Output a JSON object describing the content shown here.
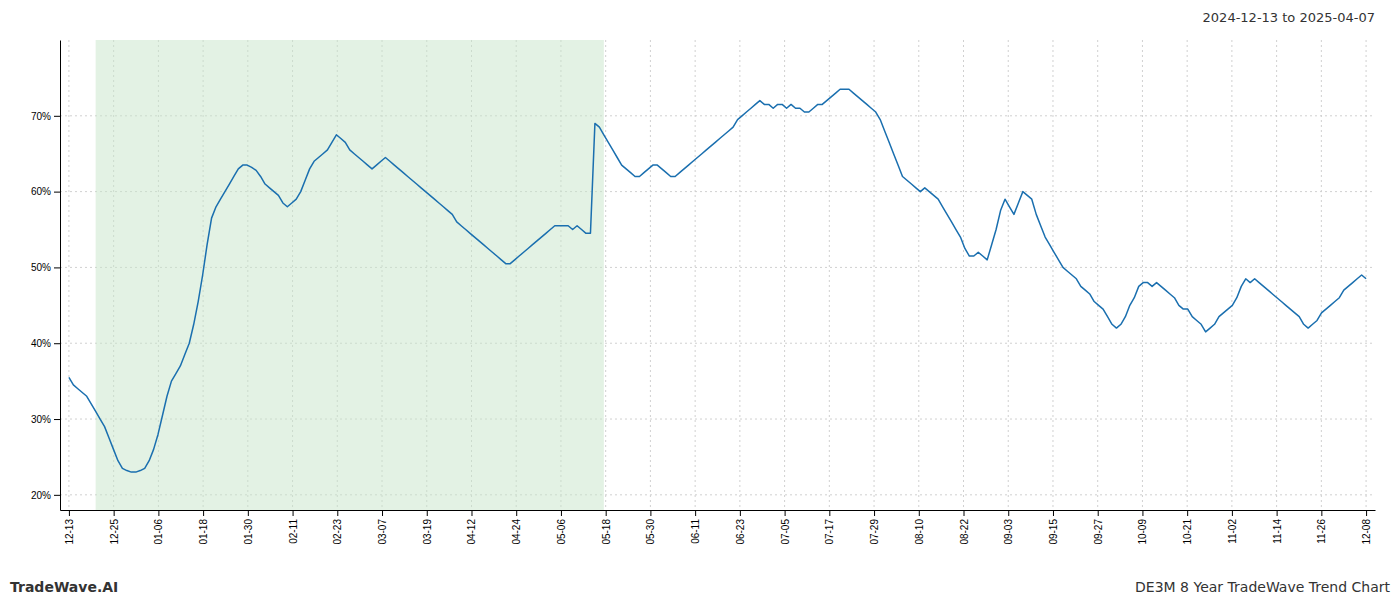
{
  "chart_data": {
    "type": "line",
    "title": "2024-12-13 to 2025-04-07",
    "annotations": [
      "TradeWave.AI",
      "DE3M 8 Year TradeWave Trend Chart"
    ],
    "color": "#1a6faf",
    "grid": true,
    "shaded_region": {
      "x": [
        6,
        120
      ],
      "color": "#c8e6c9"
    },
    "xlim": [
      -2,
      293
    ],
    "xticks": [
      {
        "value": 0,
        "label": "12-13"
      },
      {
        "value": 10.0345,
        "label": "12-25"
      },
      {
        "value": 20.069,
        "label": "01-06"
      },
      {
        "value": 30.1034,
        "label": "01-18"
      },
      {
        "value": 40.1379,
        "label": "01-30"
      },
      {
        "value": 50.1724,
        "label": "02-11"
      },
      {
        "value": 60.2069,
        "label": "02-23"
      },
      {
        "value": 70.2414,
        "label": "03-07"
      },
      {
        "value": 80.2759,
        "label": "03-19"
      },
      {
        "value": 90.3103,
        "label": "04-12"
      },
      {
        "value": 100.3448,
        "label": "04-24"
      },
      {
        "value": 110.3793,
        "label": "05-06"
      },
      {
        "value": 120.4138,
        "label": "05-18"
      },
      {
        "value": 130.4483,
        "label": "05-30"
      },
      {
        "value": 140.4828,
        "label": "06-11"
      },
      {
        "value": 150.5172,
        "label": "06-23"
      },
      {
        "value": 160.5517,
        "label": "07-05"
      },
      {
        "value": 170.5862,
        "label": "07-17"
      },
      {
        "value": 180.6207,
        "label": "07-29"
      },
      {
        "value": 190.6552,
        "label": "08-10"
      },
      {
        "value": 200.6897,
        "label": "08-22"
      },
      {
        "value": 210.7241,
        "label": "09-03"
      },
      {
        "value": 220.7586,
        "label": "09-15"
      },
      {
        "value": 230.7931,
        "label": "09-27"
      },
      {
        "value": 240.8276,
        "label": "10-09"
      },
      {
        "value": 250.8621,
        "label": "10-21"
      },
      {
        "value": 260.8966,
        "label": "11-02"
      },
      {
        "value": 270.931,
        "label": "11-14"
      },
      {
        "value": 280.9655,
        "label": "11-26"
      },
      {
        "value": 291,
        "label": "12-08"
      }
    ],
    "ylim": [
      18,
      80
    ],
    "yticks": [
      {
        "value": 20,
        "label": "20%"
      },
      {
        "value": 30,
        "label": "30%"
      },
      {
        "value": 40,
        "label": "40%"
      },
      {
        "value": 50,
        "label": "50%"
      },
      {
        "value": 60,
        "label": "60%"
      },
      {
        "value": 70,
        "label": "70%"
      }
    ],
    "x": [
      0,
      1,
      2,
      3,
      4,
      5,
      6,
      7,
      8,
      9,
      10,
      11,
      12,
      13,
      14,
      15,
      16,
      17,
      18,
      19,
      20,
      21,
      22,
      23,
      24,
      25,
      26,
      27,
      28,
      29,
      30,
      31,
      32,
      33,
      34,
      35,
      36,
      37,
      38,
      39,
      40,
      41,
      42,
      43,
      44,
      45,
      46,
      47,
      48,
      49,
      50,
      51,
      52,
      53,
      54,
      55,
      56,
      57,
      58,
      59,
      60,
      61,
      62,
      63,
      64,
      65,
      66,
      67,
      68,
      69,
      70,
      71,
      72,
      73,
      74,
      75,
      76,
      77,
      78,
      79,
      80,
      81,
      82,
      83,
      84,
      85,
      86,
      87,
      88,
      89,
      90,
      91,
      92,
      93,
      94,
      95,
      96,
      97,
      98,
      99,
      100,
      101,
      102,
      103,
      104,
      105,
      106,
      107,
      108,
      109,
      110,
      111,
      112,
      113,
      114,
      115,
      116,
      117,
      118,
      119,
      120,
      121,
      122,
      123,
      124,
      125,
      126,
      127,
      128,
      129,
      130,
      131,
      132,
      133,
      134,
      135,
      136,
      137,
      138,
      139,
      140,
      141,
      142,
      143,
      144,
      145,
      146,
      147,
      148,
      149,
      150,
      151,
      152,
      153,
      154,
      155,
      156,
      157,
      158,
      159,
      160,
      161,
      162,
      163,
      164,
      165,
      166,
      167,
      168,
      169,
      170,
      171,
      172,
      173,
      174,
      175,
      176,
      177,
      178,
      179,
      180,
      181,
      182,
      183,
      184,
      185,
      186,
      187,
      188,
      189,
      190,
      191,
      192,
      193,
      194,
      195,
      196,
      197,
      198,
      199,
      200,
      201,
      202,
      203,
      204,
      205,
      206,
      207,
      208,
      209,
      210,
      211,
      212,
      213,
      214,
      215,
      216,
      217,
      218,
      219,
      220,
      221,
      222,
      223,
      224,
      225,
      226,
      227,
      228,
      229,
      230,
      231,
      232,
      233,
      234,
      235,
      236,
      237,
      238,
      239,
      240,
      241,
      242,
      243,
      244,
      245,
      246,
      247,
      248,
      249,
      250,
      251,
      252,
      253,
      254,
      255,
      256,
      257,
      258,
      259,
      260,
      261,
      262,
      263,
      264,
      265,
      266,
      267,
      268,
      269,
      270,
      271,
      272,
      273,
      274,
      275,
      276,
      277,
      278,
      279,
      280,
      281,
      282,
      283,
      284,
      285,
      286,
      287,
      288,
      289,
      290,
      291
    ],
    "values": [
      35.5,
      34.5,
      34.0,
      33.5,
      33.0,
      32.0,
      31.0,
      30.0,
      29.0,
      27.5,
      26.0,
      24.5,
      23.5,
      23.2,
      23.0,
      23.0,
      23.2,
      23.5,
      24.5,
      26.0,
      28.0,
      30.5,
      33.0,
      35.0,
      36.0,
      37.0,
      38.5,
      40.0,
      42.5,
      45.5,
      49.0,
      53.0,
      56.5,
      58.0,
      59.0,
      60.0,
      61.0,
      62.0,
      63.0,
      63.5,
      63.5,
      63.2,
      62.8,
      62.0,
      61.0,
      60.5,
      60.0,
      59.5,
      58.5,
      58.0,
      58.5,
      59.0,
      60.0,
      61.5,
      63.0,
      64.0,
      64.5,
      65.0,
      65.5,
      66.5,
      67.5,
      67.0,
      66.5,
      65.5,
      65.0,
      64.5,
      64.0,
      63.5,
      63.0,
      63.5,
      64.0,
      64.5,
      64.0,
      63.5,
      63.0,
      62.5,
      62.0,
      61.5,
      61.0,
      60.5,
      60.0,
      59.5,
      59.0,
      58.5,
      58.0,
      57.5,
      57.0,
      56.0,
      55.5,
      55.0,
      54.5,
      54.0,
      53.5,
      53.0,
      52.5,
      52.0,
      51.5,
      51.0,
      50.5,
      50.5,
      51.0,
      51.5,
      52.0,
      52.5,
      53.0,
      53.5,
      54.0,
      54.5,
      55.0,
      55.5,
      55.5,
      55.5,
      55.5,
      55.0,
      55.5,
      55.0,
      54.5,
      54.5,
      69.0,
      68.5,
      67.5,
      66.5,
      65.5,
      64.5,
      63.5,
      63.0,
      62.5,
      62.0,
      62.0,
      62.5,
      63.0,
      63.5,
      63.5,
      63.0,
      62.5,
      62.0,
      62.0,
      62.5,
      63.0,
      63.5,
      64.0,
      64.5,
      65.0,
      65.5,
      66.0,
      66.5,
      67.0,
      67.5,
      68.0,
      68.5,
      69.5,
      70.0,
      70.5,
      71.0,
      71.5,
      72.0,
      71.5,
      71.5,
      71.0,
      71.5,
      71.5,
      71.0,
      71.5,
      71.0,
      71.0,
      70.5,
      70.5,
      71.0,
      71.5,
      71.5,
      72.0,
      72.5,
      73.0,
      73.5,
      73.5,
      73.5,
      73.0,
      72.5,
      72.0,
      71.5,
      71.0,
      70.5,
      69.5,
      68.0,
      66.5,
      65.0,
      63.5,
      62.0,
      61.5,
      61.0,
      60.5,
      60.0,
      60.5,
      60.0,
      59.5,
      59.0,
      58.0,
      57.0,
      56.0,
      55.0,
      54.0,
      52.5,
      51.5,
      51.5,
      52.0,
      51.5,
      51.0,
      53.0,
      55.0,
      57.5,
      59.0,
      58.0,
      57.0,
      58.5,
      60.0,
      59.5,
      59.0,
      57.0,
      55.5,
      54.0,
      53.0,
      52.0,
      51.0,
      50.0,
      49.5,
      49.0,
      48.5,
      47.5,
      47.0,
      46.5,
      45.5,
      45.0,
      44.5,
      43.5,
      42.5,
      42.0,
      42.5,
      43.5,
      45.0,
      46.0,
      47.5,
      48.0,
      48.0,
      47.5,
      48.0,
      47.5,
      47.0,
      46.5,
      46.0,
      45.0,
      44.5,
      44.5,
      43.5,
      43.0,
      42.5,
      41.5,
      42.0,
      42.5,
      43.5,
      44.0,
      44.5,
      45.0,
      46.0,
      47.5,
      48.5,
      48.0,
      48.5,
      48.0,
      47.5,
      47.0,
      46.5,
      46.0,
      45.5,
      45.0,
      44.5,
      44.0,
      43.5,
      42.5,
      42.0,
      42.5,
      43.0,
      44.0,
      44.5,
      45.0,
      45.5,
      46.0,
      47.0,
      47.5,
      48.0,
      48.5,
      49.0,
      48.5
    ]
  }
}
